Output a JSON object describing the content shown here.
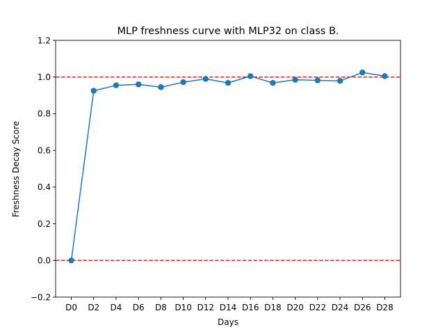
{
  "chart_data": {
    "type": "line",
    "title": "MLP freshness curve with MLP32 on class B.",
    "xlabel": "Days",
    "ylabel": "Freshness Decay Score",
    "categories": [
      "D0",
      "D2",
      "D4",
      "D6",
      "D8",
      "D10",
      "D12",
      "D14",
      "D16",
      "D18",
      "D20",
      "D22",
      "D24",
      "D26",
      "D28"
    ],
    "series": [
      {
        "values": [
          0.0,
          0.925,
          0.955,
          0.96,
          0.945,
          0.972,
          0.99,
          0.968,
          1.005,
          0.968,
          0.985,
          0.982,
          0.979,
          1.025,
          1.005
        ],
        "color": "#1f77b4",
        "marker": "circle"
      }
    ],
    "ylim": [
      -0.2,
      1.2
    ],
    "yticks": [
      -0.2,
      0.0,
      0.2,
      0.4,
      0.6,
      0.8,
      1.0,
      1.2
    ],
    "ytick_labels": [
      "−0.2",
      "0.0",
      "0.2",
      "0.4",
      "0.6",
      "0.8",
      "1.0",
      "1.2"
    ],
    "reference_lines": [
      {
        "y": 1.0,
        "color": "#d62728",
        "style": "dashed"
      },
      {
        "y": 0.0,
        "color": "#d62728",
        "style": "dashed"
      }
    ],
    "grid": false,
    "legend": "none"
  }
}
